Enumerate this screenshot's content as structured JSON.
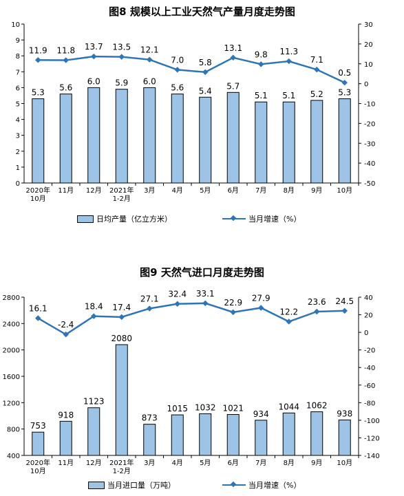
{
  "charts": [
    {
      "title": "图8  规模以上工业天然气产量月度走势图",
      "legend": {
        "bar": "日均产量（亿立方米）",
        "line": "当月增速（%）"
      }
    },
    {
      "title": "图9  天然气进口月度走势图",
      "legend": {
        "bar": "当月进口量（万吨）",
        "line": "当月增速（%）"
      }
    }
  ],
  "chart_data": [
    {
      "type": "bar",
      "title": "图8  规模以上工业天然气产量月度走势图",
      "categories": [
        "2020年\n10月",
        "11月",
        "12月",
        "2021年\n1-2月",
        "3月",
        "4月",
        "5月",
        "6月",
        "7月",
        "8月",
        "9月",
        "10月"
      ],
      "series": [
        {
          "name": "日均产量（亿立方米）",
          "kind": "bar",
          "axis": "left",
          "values": [
            5.3,
            5.6,
            6.0,
            5.9,
            6.0,
            5.6,
            5.4,
            5.7,
            5.1,
            5.1,
            5.2,
            5.3
          ]
        },
        {
          "name": "当月增速（%）",
          "kind": "line",
          "axis": "right",
          "values": [
            11.9,
            11.8,
            13.7,
            13.5,
            12.1,
            7.0,
            5.8,
            13.1,
            9.8,
            11.3,
            7.1,
            0.5
          ]
        }
      ],
      "y_left": {
        "min": 0,
        "max": 10,
        "step": 1
      },
      "y_right": {
        "min": -50,
        "max": 30,
        "step": 10
      },
      "decimals": 1,
      "legend_position": "bottom",
      "grid": false,
      "colors": {
        "bar": "#9dc3e6",
        "line": "#2e75b6"
      }
    },
    {
      "type": "bar",
      "title": "图9  天然气进口月度走势图",
      "categories": [
        "2020年\n10月",
        "11月",
        "12月",
        "2021年\n1-2月",
        "3月",
        "4月",
        "5月",
        "6月",
        "7月",
        "8月",
        "9月",
        "10月"
      ],
      "series": [
        {
          "name": "当月进口量（万吨）",
          "kind": "bar",
          "axis": "left",
          "values": [
            753,
            918,
            1123,
            2080,
            873,
            1015,
            1032,
            1021,
            934,
            1044,
            1062,
            938
          ]
        },
        {
          "name": "当月增速（%）",
          "kind": "line",
          "axis": "right",
          "values": [
            16.1,
            -2.4,
            18.4,
            17.4,
            27.1,
            32.4,
            33.1,
            22.9,
            27.9,
            12.2,
            23.6,
            24.5
          ]
        }
      ],
      "y_left": {
        "min": 400,
        "max": 2800,
        "step": 400
      },
      "y_right": {
        "min": -140,
        "max": 40,
        "step": 20
      },
      "decimals": 0,
      "legend_position": "bottom",
      "grid": false,
      "colors": {
        "bar": "#9dc3e6",
        "line": "#2e75b6"
      }
    }
  ]
}
